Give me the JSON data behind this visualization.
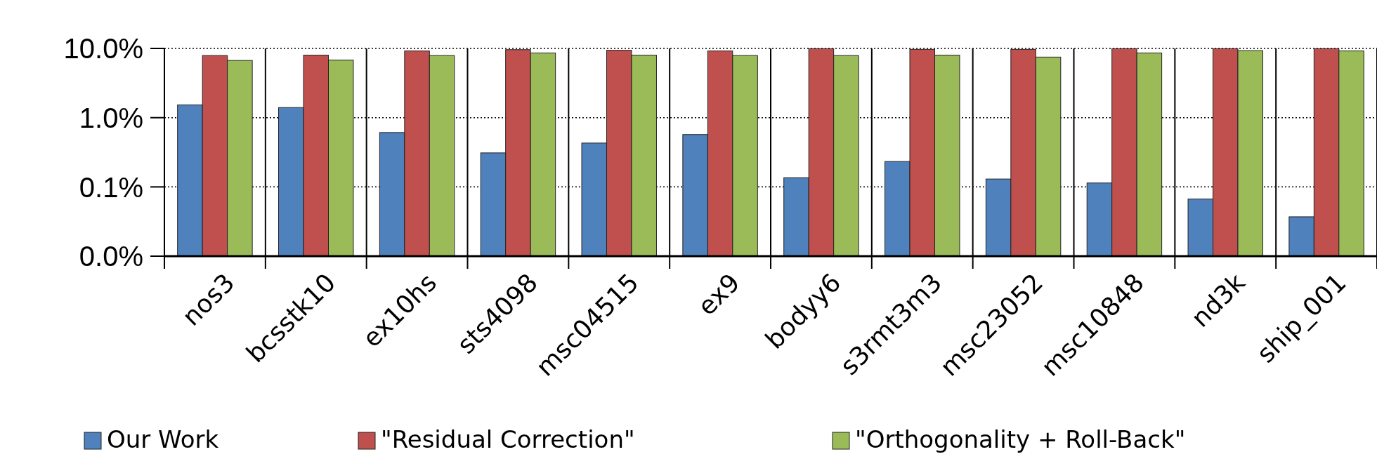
{
  "chart_data": {
    "type": "bar",
    "categories": [
      "nos3",
      "bcsstk10",
      "ex10hs",
      "sts4098",
      "msc04515",
      "ex9",
      "bodyy6",
      "s3rmt3m3",
      "msc23052",
      "msc10848",
      "nd3k",
      "ship_001"
    ],
    "series": [
      {
        "name": "Our Work",
        "color": "#4f81bd",
        "values": [
          1.53,
          1.4,
          0.61,
          0.31,
          0.43,
          0.57,
          0.136,
          0.233,
          0.13,
          0.114,
          0.067,
          0.037
        ]
      },
      {
        "name": "\"Residual Correction\"",
        "color": "#c0504d",
        "values": [
          7.9,
          8.0,
          9.2,
          9.6,
          9.4,
          9.2,
          9.9,
          9.7,
          9.7,
          9.9,
          9.9,
          9.9
        ]
      },
      {
        "name": "\"Orthogonality + Roll-Back\"",
        "color": "#9bbb59",
        "values": [
          6.7,
          6.8,
          7.9,
          8.6,
          8.0,
          7.9,
          7.9,
          8.0,
          7.5,
          8.6,
          9.3,
          9.2
        ]
      }
    ],
    "log": "y",
    "ylim": [
      0.01,
      10
    ],
    "yticks": [
      {
        "value": 0.01,
        "label": "0.0%"
      },
      {
        "value": 0.1,
        "label": "0.1%"
      },
      {
        "value": 1,
        "label": "1.0%"
      },
      {
        "value": 10,
        "label": "10.0%"
      }
    ],
    "grid": "y",
    "legend": "bottom"
  }
}
